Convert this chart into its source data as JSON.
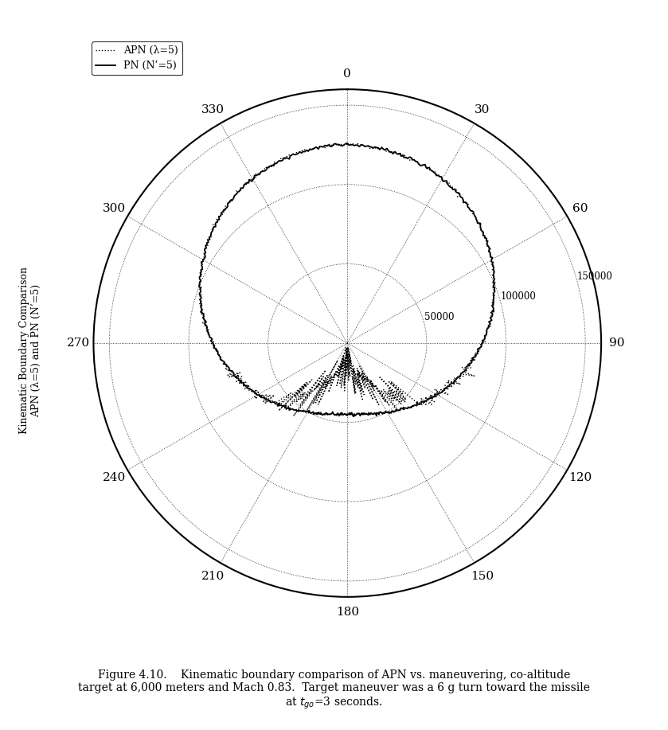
{
  "ylabel_text": "Kinematic Boundary Comparison\nAPN (λ=5) and PN (N’=5)",
  "r_max": 160000,
  "r_ticks": [
    50000,
    100000,
    150000
  ],
  "r_tick_labels": [
    "50000",
    "100000",
    "150000"
  ],
  "theta_labels": [
    "0",
    "30",
    "60",
    "90",
    "120",
    "150",
    "180",
    "210",
    "240",
    "270",
    "300",
    "330"
  ],
  "theta_tick_deg": [
    0,
    30,
    60,
    90,
    120,
    150,
    180,
    210,
    240,
    270,
    300,
    330
  ],
  "legend_labels": [
    "APN (λ=5)",
    "PN (N’=5)"
  ],
  "background_color": "#ffffff",
  "line_color": "#000000",
  "caption": "Figure 4.10.    Kinematic boundary comparison of APN vs. maneuvering, co-altitude\ntarget at 6,000 meters and Mach 0.83.  Target maneuver was a 6 g turn toward the missile\nat $t_{go}$=3 seconds."
}
